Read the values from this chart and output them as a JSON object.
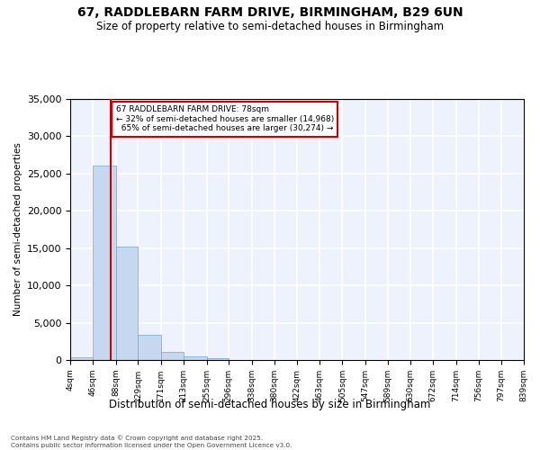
{
  "title": "67, RADDLEBARN FARM DRIVE, BIRMINGHAM, B29 6UN",
  "subtitle": "Size of property relative to semi-detached houses in Birmingham",
  "xlabel": "Distribution of semi-detached houses by size in Birmingham",
  "ylabel": "Number of semi-detached properties",
  "property_sqm": 78,
  "property_label": "67 RADDLEBARN FARM DRIVE: 78sqm",
  "smaller_pct": 32,
  "smaller_count": 14968,
  "larger_pct": 65,
  "larger_count": 30274,
  "bin_labels": [
    "4sqm",
    "46sqm",
    "88sqm",
    "129sqm",
    "171sqm",
    "213sqm",
    "255sqm",
    "296sqm",
    "338sqm",
    "380sqm",
    "422sqm",
    "463sqm",
    "505sqm",
    "547sqm",
    "589sqm",
    "630sqm",
    "672sqm",
    "714sqm",
    "756sqm",
    "797sqm",
    "839sqm"
  ],
  "bin_edges": [
    4,
    46,
    88,
    129,
    171,
    213,
    255,
    296,
    338,
    380,
    422,
    463,
    505,
    547,
    589,
    630,
    672,
    714,
    756,
    797,
    839
  ],
  "bar_heights": [
    400,
    26100,
    15200,
    3400,
    1050,
    480,
    200,
    50,
    0,
    0,
    0,
    0,
    0,
    0,
    0,
    0,
    0,
    0,
    0,
    0
  ],
  "bar_color": "#c5d8f0",
  "bar_edge_color": "#6aaad4",
  "vline_color": "#cc0000",
  "ylim_max": 35000,
  "ytick_step": 5000,
  "bg_color": "#eef2fc",
  "grid_color": "#ffffff",
  "footer_line1": "Contains HM Land Registry data © Crown copyright and database right 2025.",
  "footer_line2": "Contains public sector information licensed under the Open Government Licence v3.0."
}
